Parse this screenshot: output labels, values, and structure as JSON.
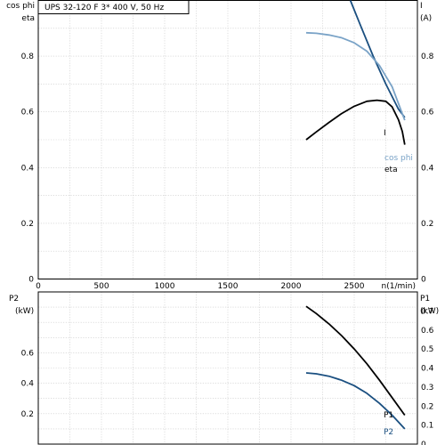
{
  "chart_data": [
    {
      "type": "line",
      "title": "UPS 32-120 F    3* 400 V, 50 Hz",
      "xlabel": "n(1/min)",
      "xlim": [
        0,
        3000
      ],
      "x_ticks": [
        "0",
        "500",
        "1000",
        "1500",
        "2000",
        "2500"
      ],
      "ylabel_left": [
        "cos phi",
        "eta"
      ],
      "ylim_left": [
        0,
        1.0
      ],
      "y_ticks_left": [
        "0",
        "0.2",
        "0.4",
        "0.6",
        "0.8"
      ],
      "ylabel_right": [
        "I",
        "(A)"
      ],
      "y_ticks_right": [
        "0",
        "0.2",
        "0.4",
        "0.6",
        "0.8"
      ],
      "grid": true,
      "series": [
        {
          "name": "I",
          "color": "#1a4f80",
          "x": [
            2470,
            2550,
            2650,
            2750,
            2850,
            2900
          ],
          "y": [
            1.0,
            0.91,
            0.8,
            0.7,
            0.61,
            0.58
          ]
        },
        {
          "name": "cos phi",
          "color": "#7aa3c7",
          "x": [
            2120,
            2200,
            2300,
            2400,
            2500,
            2600,
            2700,
            2800,
            2900
          ],
          "y": [
            0.884,
            0.882,
            0.876,
            0.866,
            0.848,
            0.818,
            0.766,
            0.69,
            0.57
          ]
        },
        {
          "name": "eta",
          "color": "#000000",
          "x": [
            2120,
            2200,
            2300,
            2400,
            2500,
            2600,
            2680,
            2750,
            2800,
            2850,
            2880,
            2900
          ],
          "y": [
            0.5,
            0.528,
            0.562,
            0.594,
            0.62,
            0.638,
            0.642,
            0.638,
            0.618,
            0.572,
            0.53,
            0.482
          ]
        }
      ]
    },
    {
      "type": "line",
      "xlabel": "",
      "xlim": [
        0,
        3000
      ],
      "ylabel_left": [
        "P2",
        "(kW)"
      ],
      "ylim_left": [
        0,
        1.0
      ],
      "y_ticks_left": [
        "0.2",
        "0.4",
        "0.6"
      ],
      "ylabel_right": [
        "P1",
        "(kW)"
      ],
      "y_ticks_right": [
        "0",
        "0.1",
        "0.2",
        "0.3",
        "0.4",
        "0.5",
        "0.6",
        "0.7"
      ],
      "grid": true,
      "series": [
        {
          "name": "P1",
          "color": "#000000",
          "x": [
            2120,
            2200,
            2300,
            2400,
            2500,
            2600,
            2700,
            2800,
            2900
          ],
          "y": [
            0.905,
            0.858,
            0.79,
            0.713,
            0.625,
            0.528,
            0.42,
            0.305,
            0.19
          ]
        },
        {
          "name": "P2",
          "color": "#1a4f80",
          "x": [
            2120,
            2200,
            2300,
            2400,
            2500,
            2600,
            2700,
            2800,
            2900
          ],
          "y": [
            0.468,
            0.462,
            0.446,
            0.42,
            0.384,
            0.334,
            0.268,
            0.19,
            0.1
          ]
        }
      ]
    }
  ]
}
